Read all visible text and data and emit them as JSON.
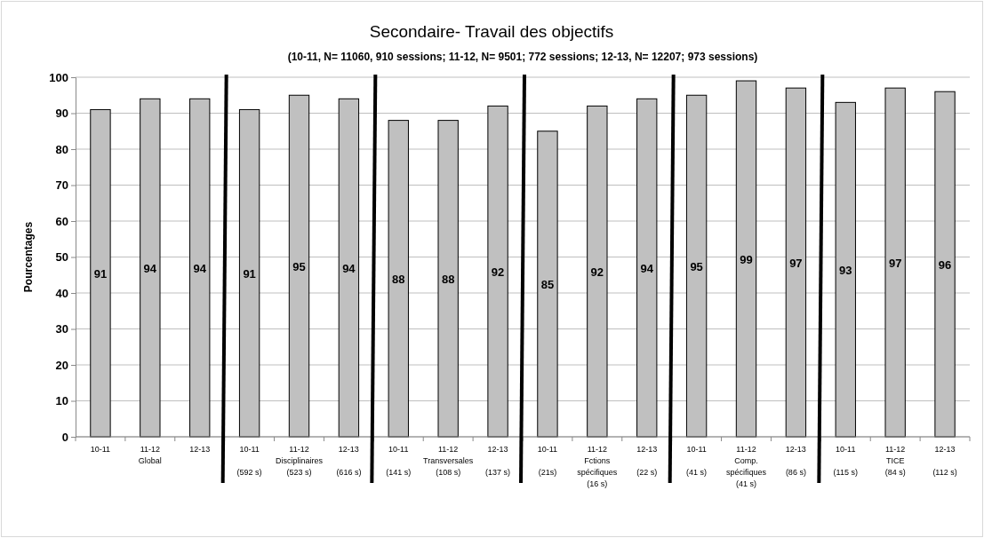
{
  "chart_data": {
    "type": "bar",
    "title": "Secondaire- Travail des objectifs",
    "subtitle": "(10-11, N= 11060, 910 sessions; 11-12, N= 9501; 772 sessions; 12-13, N= 12207; 973 sessions)",
    "ylabel": "Pourcentages",
    "categories": [
      "10-11",
      "11-12\nGlobal",
      "12-13",
      "10-11\n\n(592 s)",
      "11-12\nDisciplinaires\n(523 s)",
      "12-13\n\n(616 s)",
      "10-11\n\n(141 s)",
      "11-12\nTransversales\n(108 s)",
      "12-13\n\n(137 s)",
      "10-11\n\n(21s)",
      "11-12\nFctions\nspécifiques\n(16 s)",
      "12-13\n\n(22 s)",
      "10-11\n\n(41 s)",
      "11-12\nComp.\nspécifiques\n(41 s)",
      "12-13\n\n(86 s)",
      "10-11\n\n(115 s)",
      "11-12\nTICE\n(84 s)",
      "12-13\n\n(112 s)"
    ],
    "values": [
      91,
      94,
      94,
      91,
      95,
      94,
      88,
      88,
      92,
      85,
      92,
      94,
      95,
      99,
      97,
      93,
      97,
      96
    ],
    "color": "#c0c0c0",
    "ylim": [
      0,
      100
    ],
    "yticks": [
      0,
      10,
      20,
      30,
      40,
      50,
      60,
      70,
      80,
      90,
      100
    ],
    "grid": "y",
    "data_labels": true
  }
}
